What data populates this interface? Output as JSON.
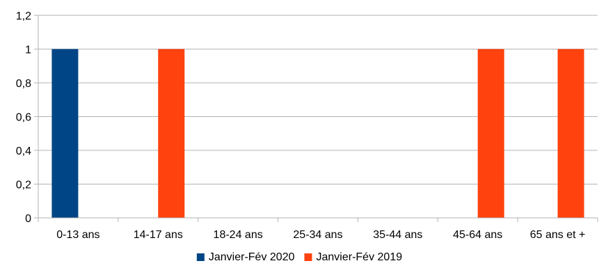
{
  "chart_data": {
    "type": "bar",
    "categories": [
      "0-13 ans",
      "14-17 ans",
      "18-24 ans",
      "25-34 ans",
      "35-44 ans",
      "45-64 ans",
      "65 ans et +"
    ],
    "series": [
      {
        "name": "Janvier-Fév 2020",
        "color": "#004586",
        "values": [
          1,
          0,
          0,
          0,
          0,
          0,
          0
        ]
      },
      {
        "name": "Janvier-Fév 2019",
        "color": "#ff420e",
        "values": [
          0,
          1,
          0,
          0,
          0,
          1,
          1
        ]
      }
    ],
    "ylim": [
      0,
      1.2
    ],
    "yticks": [
      {
        "value": 0,
        "label": "0"
      },
      {
        "value": 0.2,
        "label": "0,2"
      },
      {
        "value": 0.4,
        "label": "0,4"
      },
      {
        "value": 0.6,
        "label": "0,6"
      },
      {
        "value": 0.8,
        "label": "0,8"
      },
      {
        "value": 1,
        "label": "1"
      },
      {
        "value": 1.2,
        "label": "1,2"
      }
    ],
    "grid": true,
    "legend_position": "bottom"
  }
}
